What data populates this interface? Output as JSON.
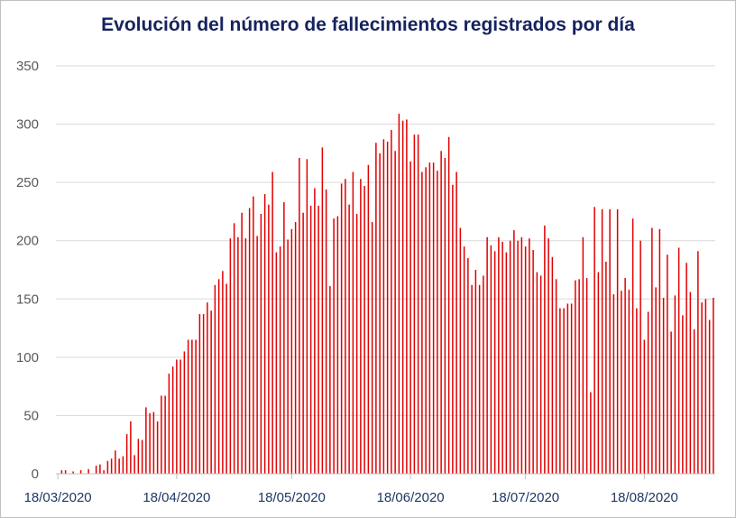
{
  "chart_data": {
    "type": "bar",
    "title": "Evolución del número de fallecimientos registrados por día",
    "xlabel": "",
    "ylabel": "",
    "ylim": [
      0,
      350
    ],
    "yticks": [
      0,
      50,
      100,
      150,
      200,
      250,
      300,
      350
    ],
    "xtick_labels": [
      "18/03/2020",
      "18/04/2020",
      "18/05/2020",
      "18/06/2020",
      "18/07/2020",
      "18/08/2020"
    ],
    "start_date": "2020-03-18",
    "grid": true,
    "legend": "none",
    "bar_color": "#e00000",
    "values": [
      0,
      3,
      3,
      0,
      2,
      0,
      3,
      0,
      4,
      0,
      7,
      8,
      3,
      11,
      13,
      20,
      13,
      15,
      34,
      45,
      16,
      30,
      29,
      57,
      52,
      53,
      45,
      67,
      67,
      86,
      92,
      98,
      98,
      105,
      115,
      115,
      115,
      137,
      137,
      147,
      140,
      162,
      167,
      174,
      163,
      202,
      215,
      203,
      224,
      202,
      228,
      238,
      204,
      223,
      240,
      231,
      259,
      190,
      195,
      233,
      201,
      210,
      216,
      271,
      224,
      270,
      230,
      245,
      230,
      280,
      244,
      161,
      219,
      221,
      249,
      253,
      231,
      259,
      223,
      253,
      247,
      265,
      216,
      284,
      275,
      287,
      285,
      295,
      277,
      309,
      303,
      304,
      268,
      291,
      291,
      259,
      263,
      267,
      267,
      260,
      277,
      271,
      289,
      248,
      259,
      211,
      195,
      185,
      162,
      175,
      162,
      170,
      203,
      196,
      191,
      203,
      199,
      190,
      200,
      209,
      200,
      203,
      195,
      202,
      192,
      173,
      170,
      213,
      202,
      186,
      167,
      142,
      142,
      146,
      146,
      166,
      167,
      203,
      168,
      70,
      229,
      173,
      227,
      182,
      227,
      154,
      227,
      157,
      168,
      158,
      219,
      142,
      200,
      115,
      139,
      211,
      160,
      210,
      151,
      188,
      122,
      153,
      194,
      136,
      181,
      156,
      124,
      191,
      147,
      150,
      132,
      151
    ]
  }
}
